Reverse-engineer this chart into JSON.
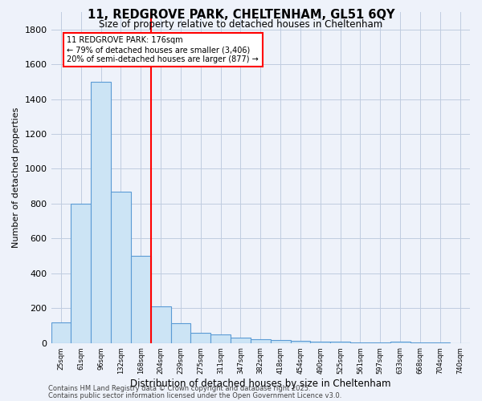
{
  "title_line1": "11, REDGROVE PARK, CHELTENHAM, GL51 6QY",
  "title_line2": "Size of property relative to detached houses in Cheltenham",
  "xlabel": "Distribution of detached houses by size in Cheltenham",
  "ylabel": "Number of detached properties",
  "categories": [
    "25sqm",
    "61sqm",
    "96sqm",
    "132sqm",
    "168sqm",
    "204sqm",
    "239sqm",
    "275sqm",
    "311sqm",
    "347sqm",
    "382sqm",
    "418sqm",
    "454sqm",
    "490sqm",
    "525sqm",
    "561sqm",
    "597sqm",
    "633sqm",
    "668sqm",
    "704sqm",
    "740sqm"
  ],
  "values": [
    120,
    800,
    1500,
    870,
    500,
    210,
    115,
    60,
    50,
    30,
    20,
    15,
    10,
    5,
    5,
    3,
    2,
    5,
    1,
    1,
    0
  ],
  "bar_color": "#cce4f5",
  "bar_edge_color": "#5b9bd5",
  "redline_index": 4.5,
  "redline_label": "11 REDGROVE PARK: 176sqm",
  "annotation_smaller": "← 79% of detached houses are smaller (3,406)",
  "annotation_larger": "20% of semi-detached houses are larger (877) →",
  "ylim": [
    0,
    1900
  ],
  "yticks": [
    0,
    200,
    400,
    600,
    800,
    1000,
    1200,
    1400,
    1600,
    1800
  ],
  "footer_line1": "Contains HM Land Registry data © Crown copyright and database right 2025.",
  "footer_line2": "Contains public sector information licensed under the Open Government Licence v3.0.",
  "background_color": "#eef2fa",
  "grid_color": "#c0cce0"
}
